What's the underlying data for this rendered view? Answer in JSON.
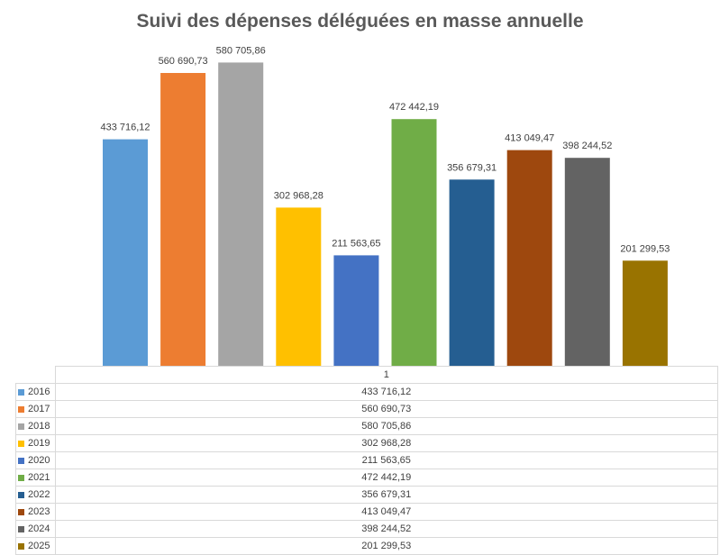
{
  "chart_data": {
    "type": "bar",
    "title": "Suivi des dépenses déléguées en masse annuelle",
    "categories": [
      "1"
    ],
    "series": [
      {
        "name": "2016",
        "values": [
          433716.12
        ],
        "label": "433 716,12",
        "color": "#5b9bd5"
      },
      {
        "name": "2017",
        "values": [
          560690.73
        ],
        "label": "560 690,73",
        "color": "#ed7d31"
      },
      {
        "name": "2018",
        "values": [
          580705.86
        ],
        "label": "580 705,86",
        "color": "#a5a5a5"
      },
      {
        "name": "2019",
        "values": [
          302968.28
        ],
        "label": "302 968,28",
        "color": "#ffc000"
      },
      {
        "name": "2020",
        "values": [
          211563.65
        ],
        "label": "211 563,65",
        "color": "#4472c4"
      },
      {
        "name": "2021",
        "values": [
          472442.19
        ],
        "label": "472 442,19",
        "color": "#70ad47"
      },
      {
        "name": "2022",
        "values": [
          356679.31
        ],
        "label": "356 679,31",
        "color": "#255e91"
      },
      {
        "name": "2023",
        "values": [
          413049.47
        ],
        "label": "413 049,47",
        "color": "#9e480e"
      },
      {
        "name": "2024",
        "values": [
          398244.52
        ],
        "label": "398 244,52",
        "color": "#636363"
      },
      {
        "name": "2025",
        "values": [
          201299.53
        ],
        "label": "201 299,53",
        "color": "#997300"
      }
    ],
    "ylim": [
      0,
      600000
    ],
    "grid": false,
    "legend": "data-table"
  }
}
